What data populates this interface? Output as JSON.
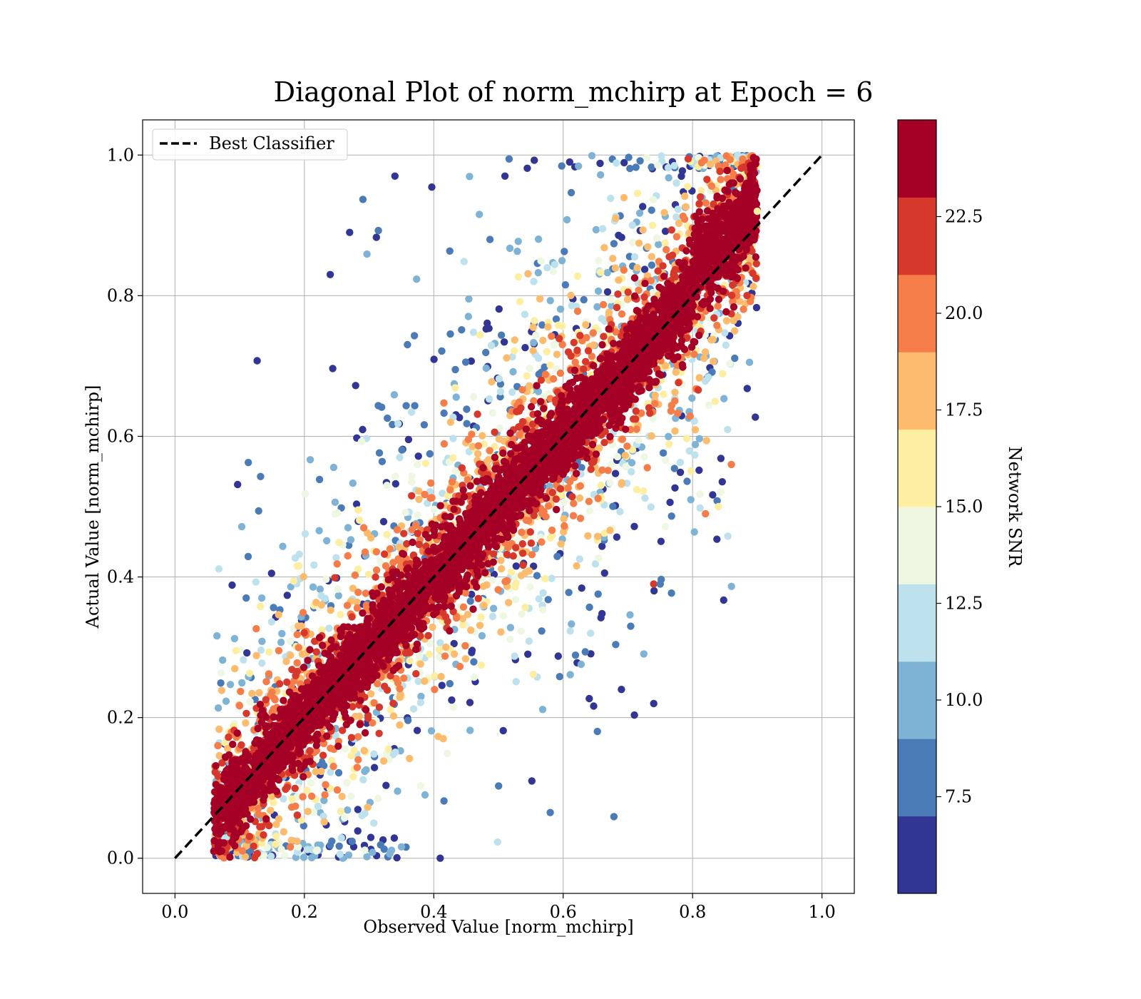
{
  "chart_data": {
    "type": "scatter",
    "title": "Diagonal Plot of norm_mchirp at Epoch = 6",
    "xlabel": "Observed Value [norm_mchirp]",
    "ylabel": "Actual Value [norm_mchirp]",
    "xlim": [
      -0.05,
      1.05
    ],
    "ylim": [
      -0.05,
      1.05
    ],
    "xticks": [
      "0.0",
      "0.2",
      "0.4",
      "0.6",
      "0.8",
      "1.0"
    ],
    "yticks": [
      "0.0",
      "0.2",
      "0.4",
      "0.6",
      "0.8",
      "1.0"
    ],
    "grid": true,
    "legend": {
      "position": "upper-left",
      "entries": [
        {
          "label": "Best Classifier",
          "style": "black-dashed-line"
        }
      ]
    },
    "reference_line": {
      "name": "Best Classifier",
      "x": [
        0,
        1
      ],
      "y": [
        0,
        1
      ],
      "color": "#000000"
    },
    "colorbar": {
      "label": "Network SNR",
      "range": [
        5,
        25
      ],
      "ticks": [
        "7.5",
        "10.0",
        "12.5",
        "15.0",
        "17.5",
        "20.0",
        "22.5"
      ],
      "bins": [
        {
          "from": 5,
          "to": 7,
          "color": "#313695"
        },
        {
          "from": 7,
          "to": 9,
          "color": "#4a7bb7"
        },
        {
          "from": 9,
          "to": 11,
          "color": "#7fb3d5"
        },
        {
          "from": 11,
          "to": 13,
          "color": "#bde2ee"
        },
        {
          "from": 13,
          "to": 15,
          "color": "#eef7e1"
        },
        {
          "from": 15,
          "to": 17,
          "color": "#feeea2"
        },
        {
          "from": 17,
          "to": 19,
          "color": "#fcbb6d"
        },
        {
          "from": 19,
          "to": 21,
          "color": "#f57d4a"
        },
        {
          "from": 21,
          "to": 23,
          "color": "#d7382c"
        },
        {
          "from": 23,
          "to": 25,
          "color": "#a50026"
        }
      ]
    },
    "series": [
      {
        "distribution": "approximate — dense cloud along the diagonal; low-SNR points scatter off-diagonal",
        "x_range": [
          0.06,
          0.9
        ],
        "y_range": [
          0.0,
          1.0
        ],
        "points": [
          {
            "x": 0.06,
            "y": 0.01,
            "snr": 24
          },
          {
            "x": 0.1,
            "y": 0.05,
            "snr": 24
          },
          {
            "x": 0.15,
            "y": 0.12,
            "snr": 24
          },
          {
            "x": 0.2,
            "y": 0.2,
            "snr": 24
          },
          {
            "x": 0.3,
            "y": 0.3,
            "snr": 24
          },
          {
            "x": 0.4,
            "y": 0.42,
            "snr": 24
          },
          {
            "x": 0.5,
            "y": 0.5,
            "snr": 24
          },
          {
            "x": 0.6,
            "y": 0.6,
            "snr": 24
          },
          {
            "x": 0.7,
            "y": 0.72,
            "snr": 24
          },
          {
            "x": 0.8,
            "y": 0.82,
            "snr": 24
          },
          {
            "x": 0.85,
            "y": 0.95,
            "snr": 24
          },
          {
            "x": 0.89,
            "y": 0.98,
            "snr": 24
          },
          {
            "x": 0.24,
            "y": 0.83,
            "snr": 6
          },
          {
            "x": 0.27,
            "y": 0.89,
            "snr": 6
          },
          {
            "x": 0.34,
            "y": 0.97,
            "snr": 6
          },
          {
            "x": 0.51,
            "y": 0.97,
            "snr": 6
          },
          {
            "x": 0.61,
            "y": 0.99,
            "snr": 6
          },
          {
            "x": 0.11,
            "y": 0.37,
            "snr": 8
          },
          {
            "x": 0.74,
            "y": 0.22,
            "snr": 6
          },
          {
            "x": 0.69,
            "y": 0.24,
            "snr": 6
          },
          {
            "x": 0.58,
            "y": 0.065,
            "snr": 8
          },
          {
            "x": 0.41,
            "y": 0.0,
            "snr": 6
          },
          {
            "x": 0.86,
            "y": 0.56,
            "snr": 20
          },
          {
            "x": 0.9,
            "y": 0.92,
            "snr": 15
          },
          {
            "x": 0.84,
            "y": 0.5,
            "snr": 15
          },
          {
            "x": 0.82,
            "y": 0.49,
            "snr": 19
          },
          {
            "x": 0.74,
            "y": 0.39,
            "snr": 22
          },
          {
            "x": 0.75,
            "y": 0.39,
            "snr": 8
          }
        ]
      }
    ]
  }
}
